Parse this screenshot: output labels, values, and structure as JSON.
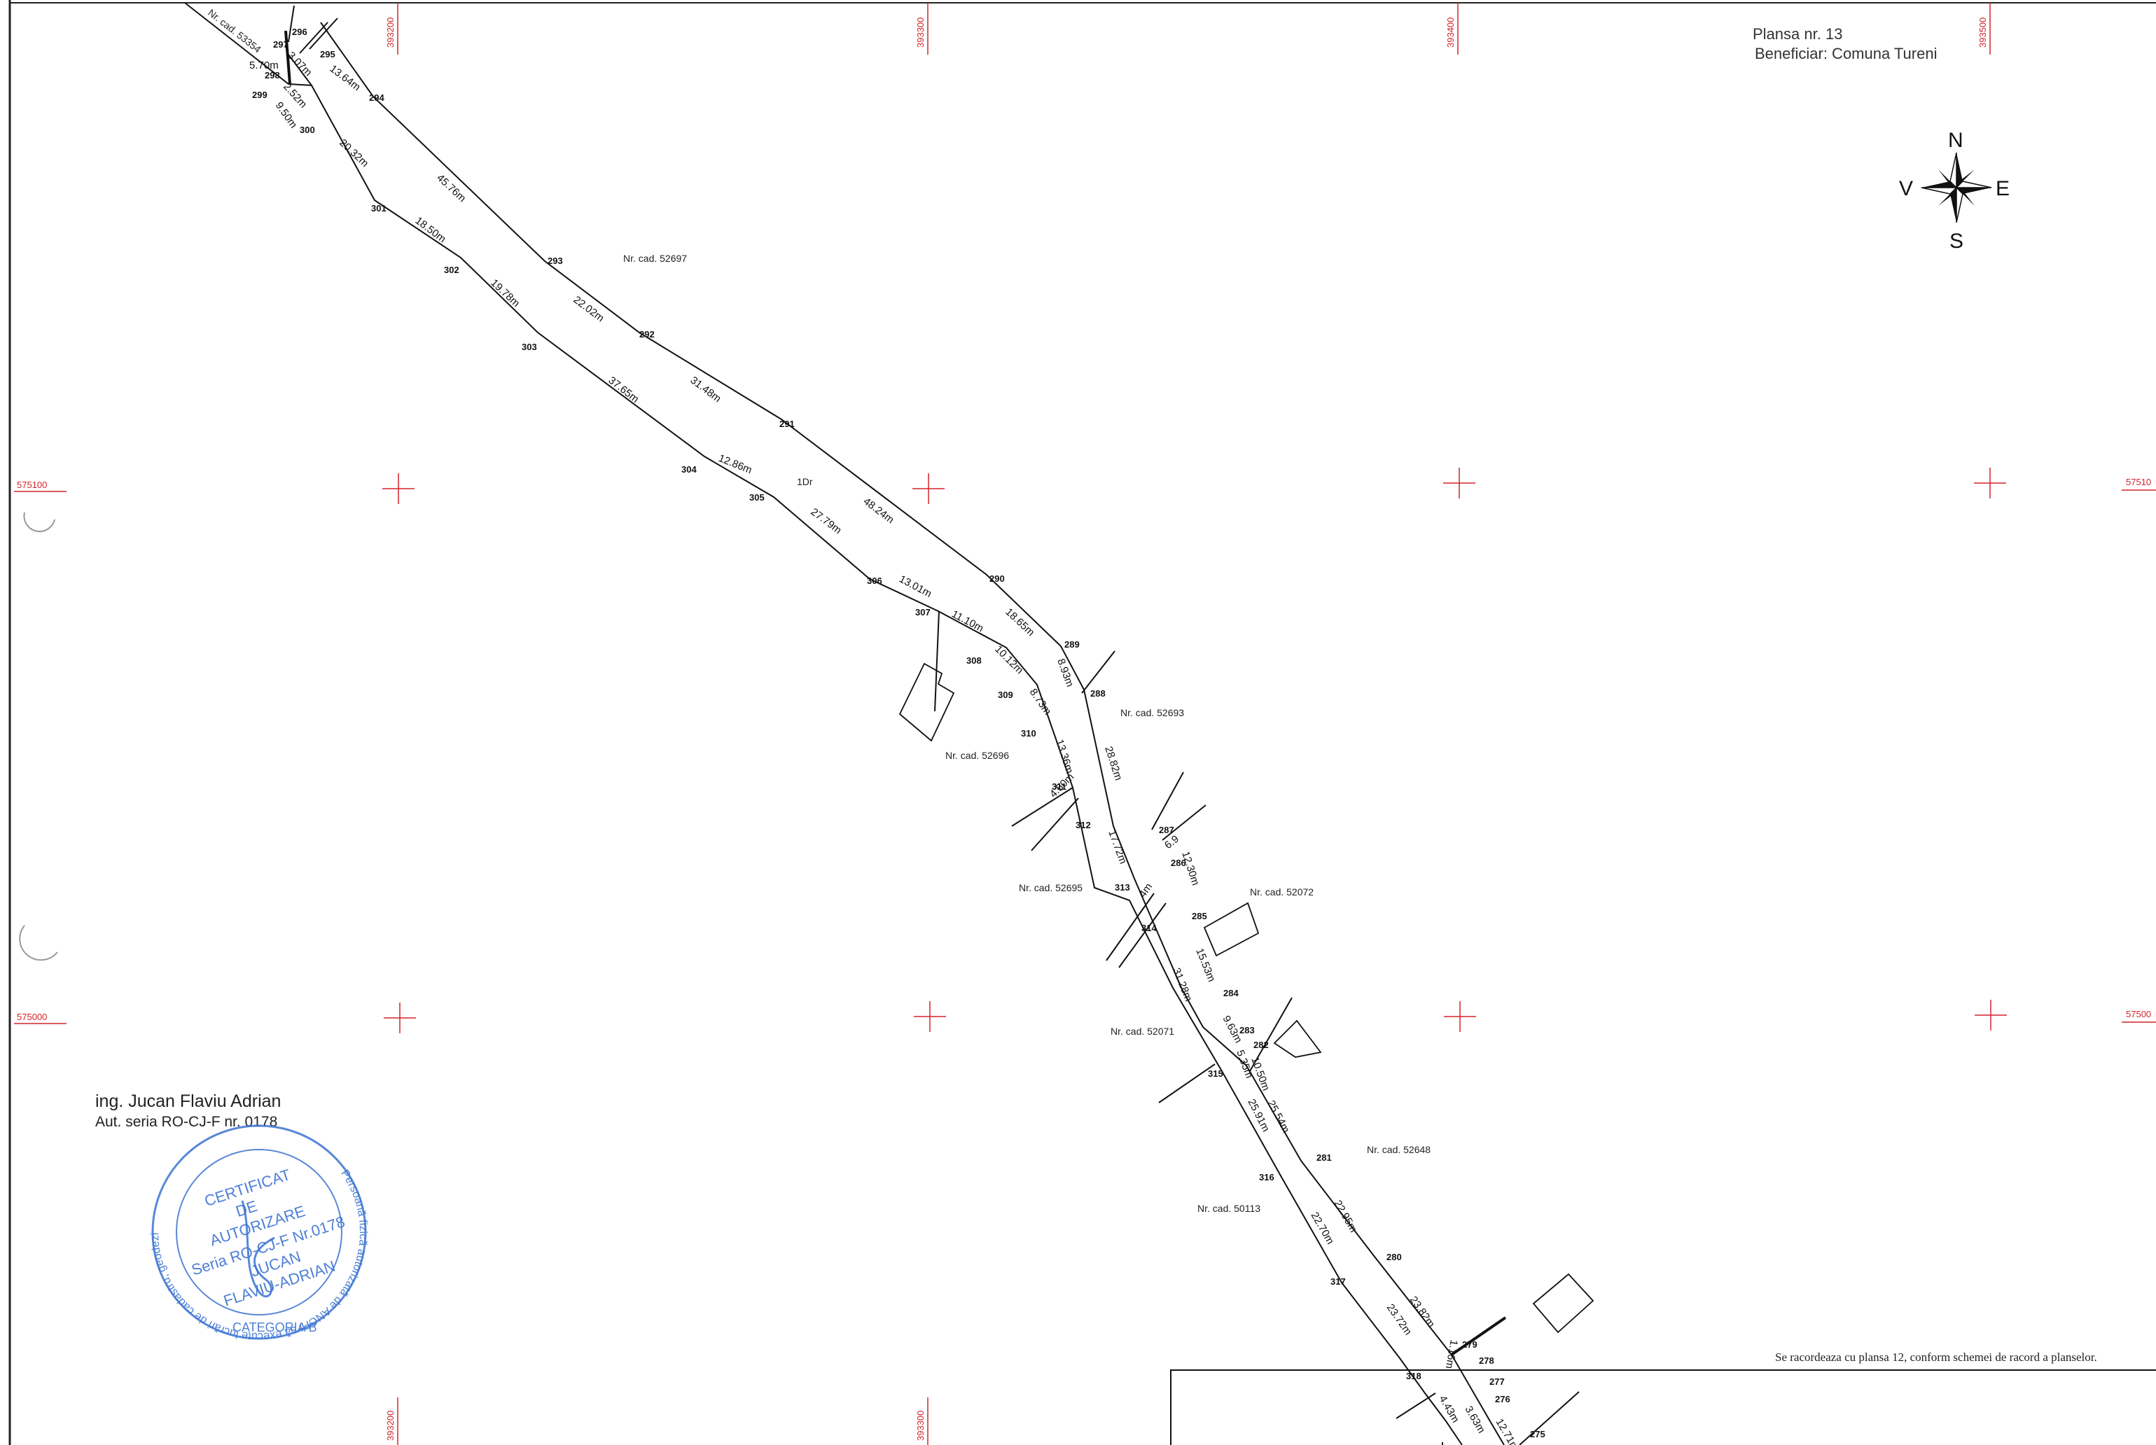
{
  "plan": {
    "title": "Plansa nr. 13",
    "beneficiary": "Beneficiar: Comuna Tureni",
    "surveyor_name": "ing. Jucan Flaviu Adrian",
    "surveyor_auth": "Aut. seria RO-CJ-F nr. 0178",
    "connection_note": "Se racordeaza cu plansa 12, conform schemei de racord a planselor.",
    "road_label": "1Dr"
  },
  "compass": {
    "north": "N",
    "south": "S",
    "east": "E",
    "west": "V",
    "icon": "compass-rose-icon"
  },
  "grid": {
    "x_labels": [
      "393200",
      "393300",
      "393400",
      "393500"
    ],
    "y_labels": [
      "575100",
      "575000"
    ],
    "y_labels_right": [
      "57510",
      "57500"
    ]
  },
  "colors": {
    "grid": "#d2232a",
    "stamp": "#3b73d1",
    "lines": "#111111"
  },
  "parcels": [
    "Nr. cad. 53354",
    "Nr. cad. 52697",
    "Nr. cad. 52696",
    "Nr. cad. 52693",
    "Nr. cad. 52695",
    "Nr. cad. 52072",
    "Nr. cad. 52071",
    "Nr. cad. 52648",
    "Nr. cad. 50113"
  ],
  "points": [
    "275",
    "276",
    "277",
    "278",
    "279",
    "280",
    "281",
    "282",
    "283",
    "284",
    "285",
    "286",
    "287",
    "288",
    "289",
    "290",
    "291",
    "292",
    "293",
    "294",
    "295",
    "296",
    "297",
    "298",
    "299",
    "300",
    "301",
    "302",
    "303",
    "304",
    "305",
    "306",
    "307",
    "308",
    "309",
    "310",
    "311",
    "312",
    "313",
    "314",
    "315",
    "316",
    "317",
    "318"
  ],
  "segments": [
    "13.64m",
    "45.76m",
    "22.02m",
    "31.48m",
    "48.24m",
    "18.65m",
    "8.93m",
    "28.82m",
    "4.50m",
    "12.30m",
    "15.53m",
    "9.63m",
    "25.54m",
    "22.95m",
    "23.82m",
    "1.16m",
    "3.07m",
    "2.52m",
    "9.50m",
    "20.32m",
    "18.50m",
    "19.78m",
    "37.65m",
    "12.86m",
    "27.79m",
    "13.01m",
    "11.10m",
    "10.12m",
    "8.73m",
    "13.36m",
    "17.72m",
    "31.28m",
    "25.91m",
    "22.70m",
    "23.72m",
    "12.71m",
    "5.70m",
    "4m",
    "6.9",
    "3.63m",
    "4.43m",
    "10.50m",
    "5.35m"
  ],
  "stamp": {
    "outer_text": "Persoană fizică autorizată de ANCPI să execute lucrări de cadastru, geodezie şi cartografie",
    "line1": "CERTIFICAT",
    "line2": "DE",
    "line3": "AUTORIZARE",
    "line4": "Seria RO-CJ-F Nr.0178",
    "line5": "JUCAN",
    "line6": "FLAVIU-ADRIAN",
    "category": "CATEGORIA B"
  }
}
